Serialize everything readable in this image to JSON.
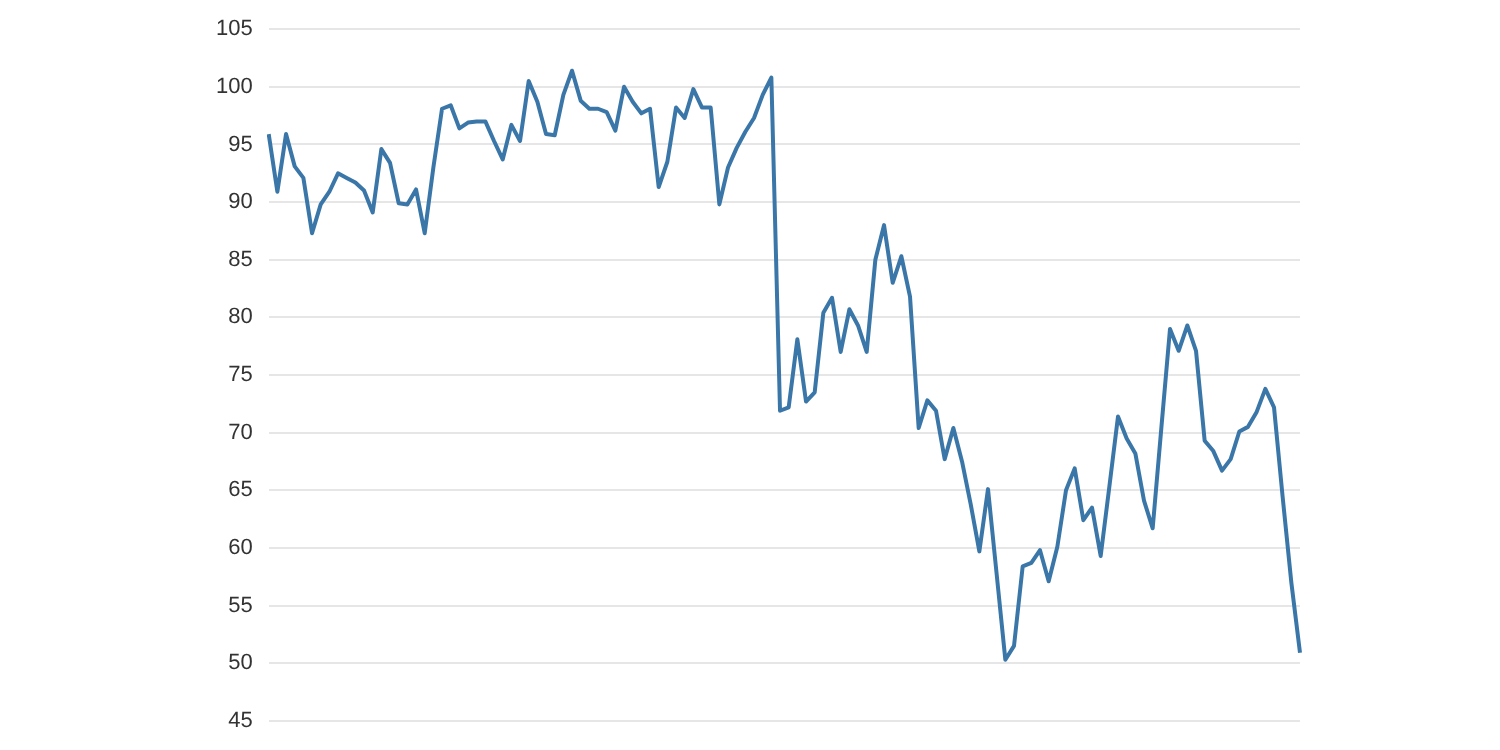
{
  "chart_data": {
    "type": "line",
    "categories": [
      null,
      null,
      null,
      null,
      null,
      null,
      null,
      null,
      null,
      null,
      null,
      null,
      null,
      null,
      null,
      null,
      null,
      null,
      null,
      null,
      null,
      null,
      null,
      null,
      null,
      null,
      null,
      null,
      null,
      null,
      null,
      null,
      null,
      null,
      null,
      null,
      null,
      null,
      null,
      null,
      null,
      null,
      null,
      null,
      null,
      null,
      null,
      null,
      null,
      null,
      null,
      null,
      null,
      null,
      null,
      null,
      null,
      null,
      null,
      null,
      null,
      null,
      null,
      null,
      null,
      null,
      null,
      null,
      null,
      null,
      null,
      null,
      null,
      null,
      null,
      null,
      null,
      null,
      null,
      null,
      null,
      null,
      null,
      null,
      null,
      null,
      null,
      null,
      null,
      null,
      null,
      null,
      null,
      null,
      null,
      null,
      null,
      null,
      null,
      null,
      null,
      null,
      null,
      null,
      null,
      null,
      null,
      null,
      null,
      null,
      null,
      null,
      null,
      null,
      null,
      null,
      null,
      null,
      null,
      null
    ],
    "series": [
      {
        "color": "#3a77a8",
        "values": [
          95.9,
          90.9,
          95.9,
          93.1,
          92.1,
          87.3,
          89.8,
          90.9,
          92.5,
          92.1,
          91.7,
          91.0,
          89.1,
          94.6,
          93.4,
          89.9,
          89.8,
          91.1,
          87.3,
          93.0,
          98.1,
          98.4,
          96.4,
          96.9,
          97.0,
          97.0,
          95.3,
          93.7,
          96.7,
          95.3,
          100.5,
          98.7,
          95.9,
          95.8,
          99.3,
          101.4,
          98.8,
          98.1,
          98.1,
          97.8,
          96.2,
          100.0,
          98.7,
          97.7,
          98.1,
          91.3,
          93.5,
          98.2,
          97.3,
          99.8,
          98.2,
          98.2,
          89.8,
          93.0,
          94.7,
          96.1,
          97.3,
          99.3,
          100.8,
          71.9,
          72.2,
          78.1,
          72.7,
          73.5,
          80.4,
          81.7,
          77.0,
          80.7,
          79.3,
          77.0,
          85.0,
          88.0,
          83.0,
          85.3,
          81.8,
          70.4,
          72.8,
          71.9,
          67.7,
          70.4,
          67.5,
          63.8,
          59.7,
          65.1,
          57.7,
          50.3,
          51.5,
          58.4,
          58.7,
          59.8,
          57.1,
          60.1,
          65.0,
          66.9,
          62.4,
          63.5,
          59.3,
          65.3,
          71.4,
          69.5,
          68.2,
          64.1,
          61.7,
          70.4,
          79.0,
          77.1,
          79.3,
          77.1,
          69.3,
          68.4,
          66.7,
          67.7,
          70.1,
          70.5,
          71.8,
          73.8,
          72.2,
          64.4,
          57.0,
          50.9
        ]
      }
    ],
    "ylim": [
      45,
      105
    ],
    "yticks": [
      45,
      50,
      55,
      60,
      65,
      70,
      75,
      80,
      85,
      90,
      95,
      100,
      105
    ],
    "grid": "y",
    "tick_labels": "y",
    "marker": "none",
    "line_style": "solid"
  }
}
